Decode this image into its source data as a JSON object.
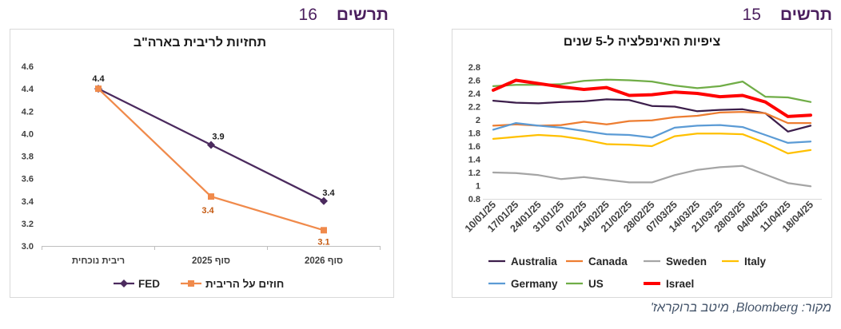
{
  "figures": [
    {
      "label": "תרשים",
      "number": "15"
    },
    {
      "label": "תרשים",
      "number": "16"
    }
  ],
  "source": "מקור: Bloomberg, מיטב ברוקראז'",
  "chart_data": [
    {
      "type": "line",
      "title": "ציפיות האינפלציה ל-5 שנים",
      "x": [
        "10/01/25",
        "17/01/25",
        "24/01/25",
        "31/01/25",
        "07/02/25",
        "14/02/25",
        "21/02/25",
        "28/02/25",
        "07/03/25",
        "14/03/25",
        "21/03/25",
        "28/03/25",
        "04/04/25",
        "11/04/25",
        "18/04/25"
      ],
      "ylim": [
        0.8,
        2.8
      ],
      "yticks": [
        "0.8",
        "1",
        "1.2",
        "1.4",
        "1.6",
        "1.8",
        "2",
        "2.2",
        "2.4",
        "2.6",
        "2.8"
      ],
      "grid": false,
      "legend": "bottom",
      "series": [
        {
          "name": "Australia",
          "color": "#3c1e4b",
          "values": [
            2.29,
            2.26,
            2.25,
            2.27,
            2.28,
            2.31,
            2.3,
            2.21,
            2.2,
            2.13,
            2.15,
            2.16,
            2.1,
            1.82,
            1.91
          ]
        },
        {
          "name": "Canada",
          "color": "#ed7d31",
          "values": [
            1.91,
            1.93,
            1.91,
            1.92,
            1.97,
            1.93,
            1.98,
            1.99,
            2.04,
            2.06,
            2.11,
            2.12,
            2.1,
            1.95,
            1.95
          ]
        },
        {
          "name": "Sweden",
          "color": "#a5a5a5",
          "values": [
            1.2,
            1.19,
            1.16,
            1.1,
            1.13,
            1.09,
            1.05,
            1.05,
            1.16,
            1.24,
            1.28,
            1.3,
            1.17,
            1.04,
            0.99
          ]
        },
        {
          "name": "Italy",
          "color": "#ffc000",
          "values": [
            1.71,
            1.74,
            1.77,
            1.75,
            1.7,
            1.63,
            1.62,
            1.6,
            1.75,
            1.79,
            1.79,
            1.78,
            1.65,
            1.49,
            1.54
          ]
        },
        {
          "name": "Germany",
          "color": "#5b9bd5",
          "values": [
            1.85,
            1.95,
            1.91,
            1.88,
            1.83,
            1.78,
            1.77,
            1.73,
            1.88,
            1.91,
            1.92,
            1.89,
            1.77,
            1.65,
            1.67
          ]
        },
        {
          "name": "US",
          "color": "#70ad47",
          "values": [
            2.51,
            2.53,
            2.53,
            2.54,
            2.59,
            2.61,
            2.6,
            2.58,
            2.52,
            2.48,
            2.51,
            2.58,
            2.35,
            2.34,
            2.27
          ]
        },
        {
          "name": "Israel",
          "color": "#ff0000",
          "emphasis": true,
          "values": [
            2.45,
            2.6,
            2.55,
            2.5,
            2.46,
            2.49,
            2.37,
            2.38,
            2.42,
            2.4,
            2.35,
            2.37,
            2.27,
            2.05,
            2.07
          ]
        }
      ]
    },
    {
      "type": "line",
      "title": "תחזיות לריבית בארה\"ב",
      "categories": [
        "ריבית נוכחית",
        "סוף 2025",
        "סוף 2026"
      ],
      "ylim": [
        3.0,
        4.6
      ],
      "yticks": [
        "3.0",
        "3.2",
        "3.4",
        "3.6",
        "3.8",
        "4.0",
        "4.2",
        "4.4",
        "4.6"
      ],
      "grid": false,
      "legend": "bottom",
      "series": [
        {
          "name": "FED",
          "color": "#4b2a5e",
          "marker": "diamond",
          "values": [
            4.4,
            3.9,
            3.4
          ],
          "labels": [
            "4.4",
            "3.9",
            "3.4"
          ],
          "label_color": "#1a1a1a"
        },
        {
          "name": "חוזים על הריבית",
          "color": "#f08a4b",
          "marker": "square",
          "values": [
            4.4,
            3.44,
            3.14
          ],
          "labels": [
            "",
            "3.4",
            "3.1"
          ],
          "label_color": "#c55a11"
        }
      ]
    }
  ]
}
